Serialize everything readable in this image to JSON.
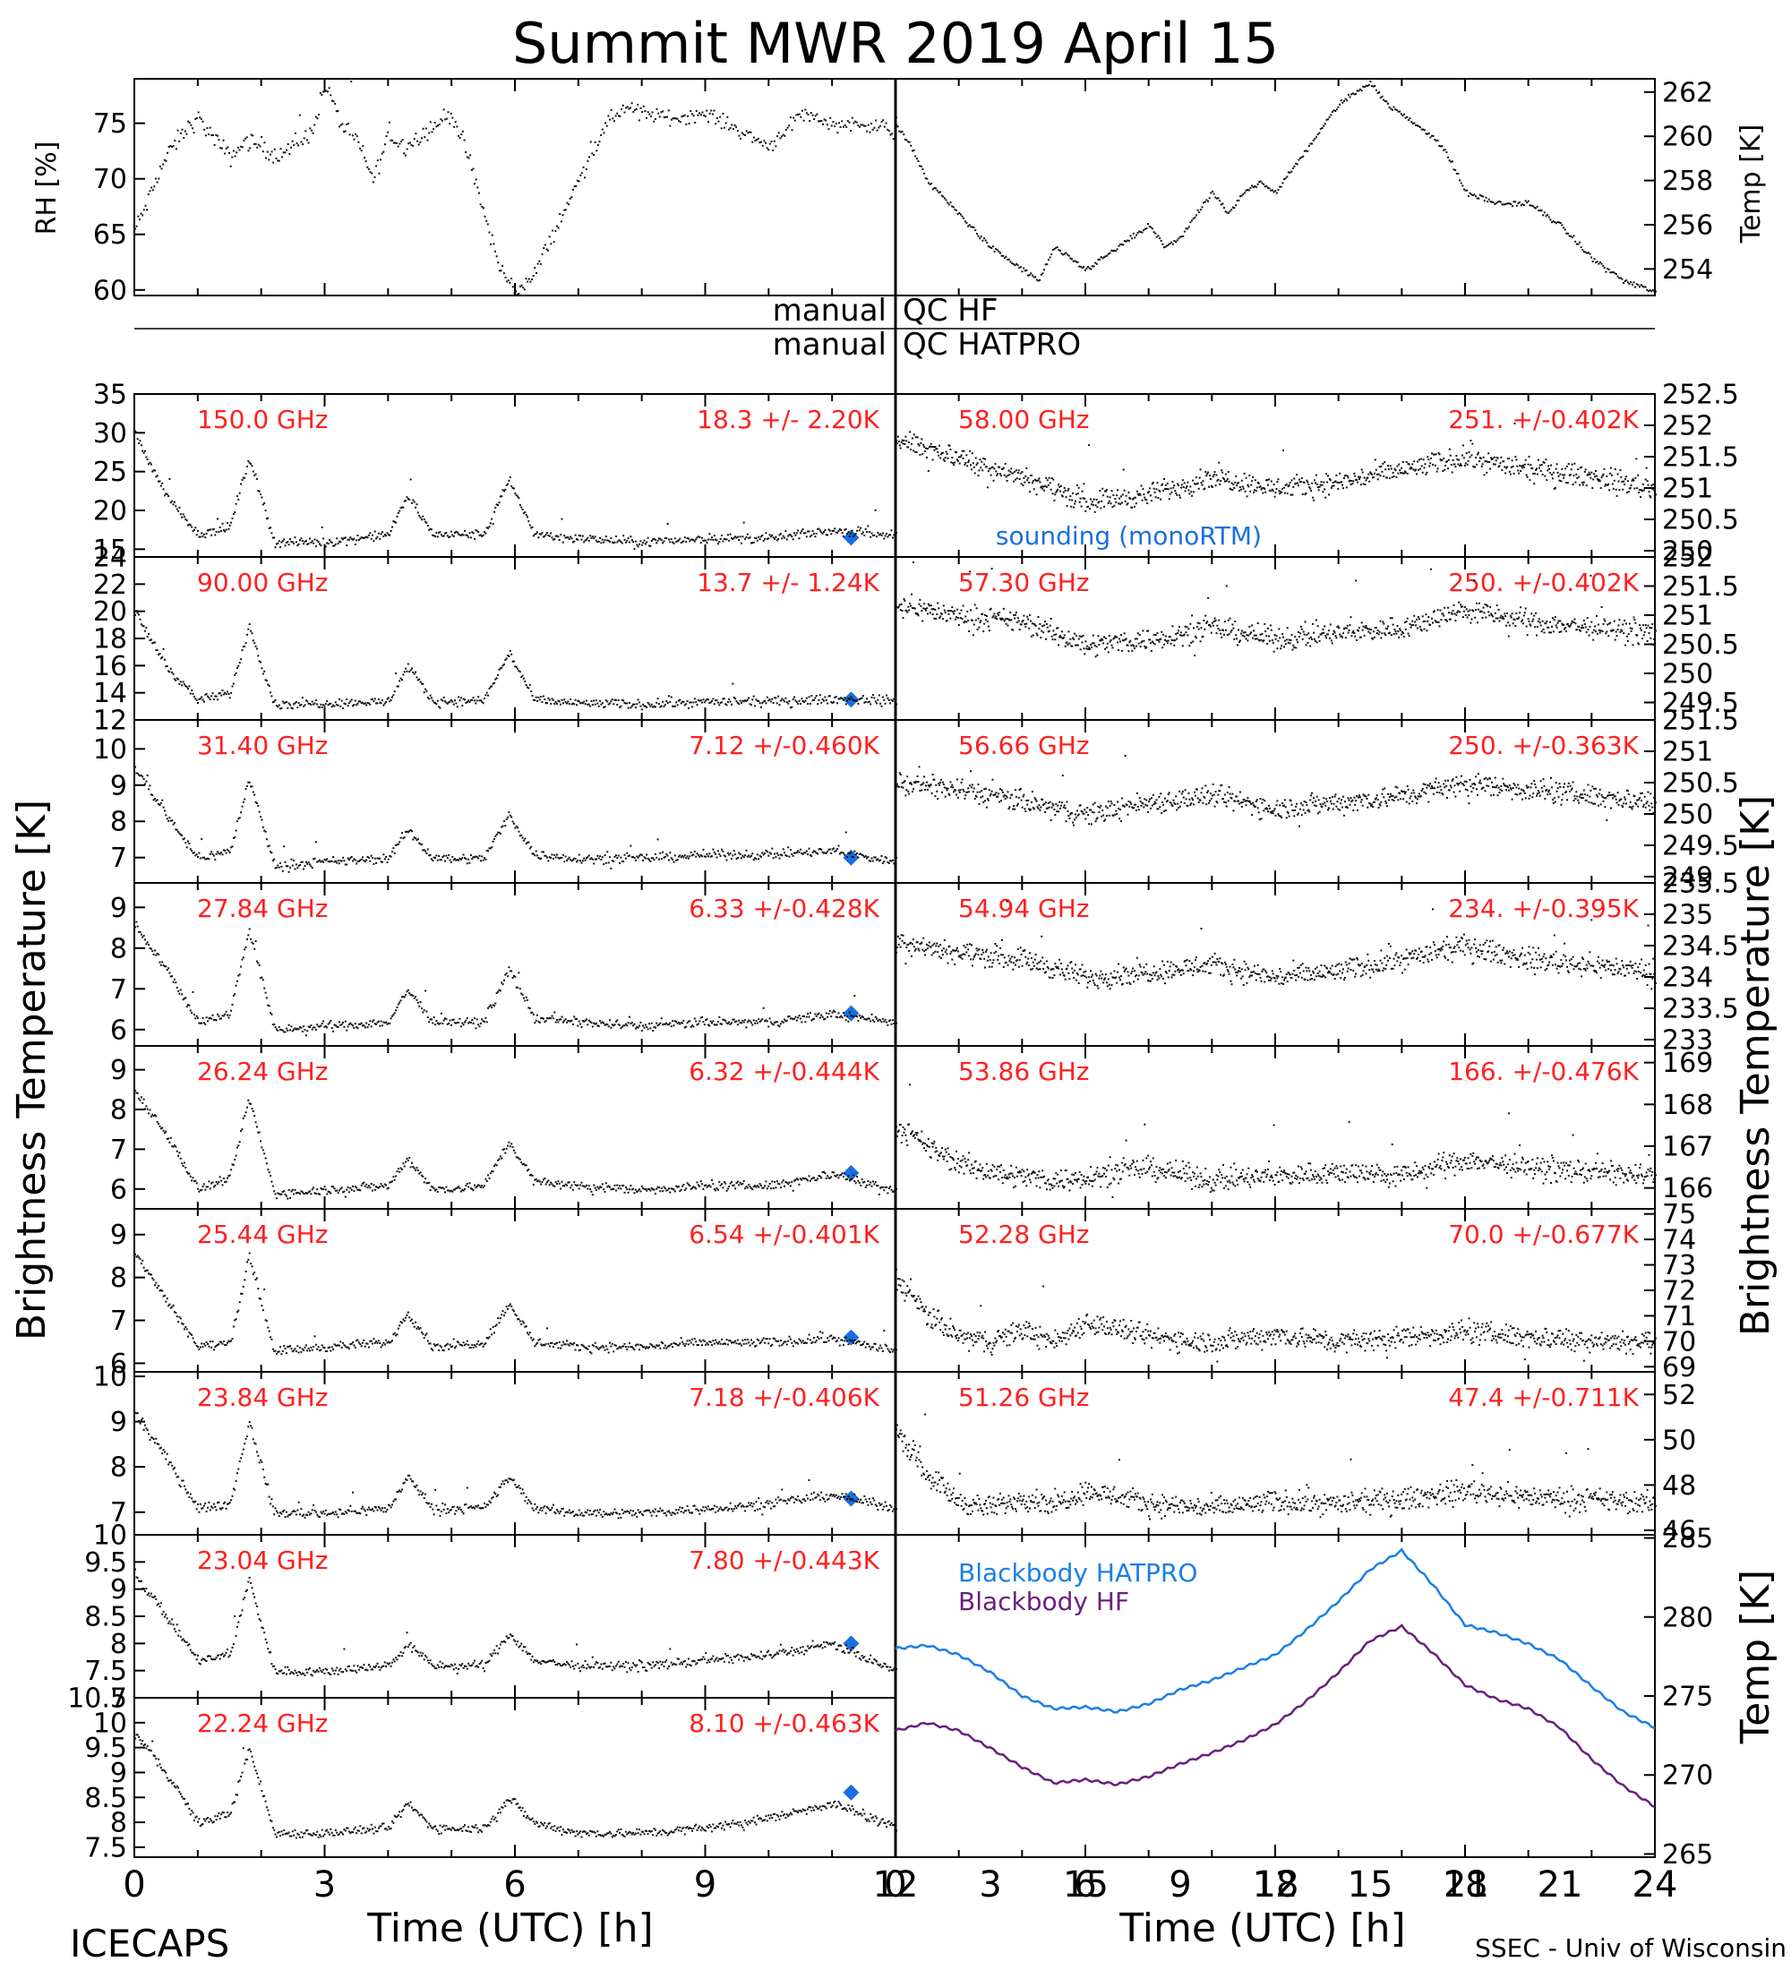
{
  "title": "Summit MWR 2019 April 15",
  "footer_left": "ICECAPS",
  "footer_right": "SSEC - Univ of Wisconsin",
  "colors": {
    "label_red": "#ff2020",
    "sounding_blue": "#1a6fdf",
    "hatpro_blue": "#1a7fe8",
    "hf_purple": "#6a1f7f",
    "axis": "#000000"
  },
  "qc_labels": {
    "hf_left": "manual",
    "hf_right": "QC HF",
    "hatpro_left": "manual",
    "hatpro_right": "QC HATPRO"
  },
  "chart_data": [
    {
      "id": "rh",
      "type": "scatter",
      "ylabel": "RH [%]",
      "xlim": [
        0,
        12
      ],
      "ylim": [
        59.5,
        79
      ],
      "yticks": [
        60,
        65,
        70,
        75
      ],
      "knots_x": [
        0,
        0.4,
        0.8,
        1.2,
        1.6,
        2.0,
        2.4,
        3.0,
        3.5,
        4.0,
        4.5,
        5.0,
        5.5,
        6.0,
        6.5,
        7.0,
        7.5,
        8.0,
        8.5,
        9.0,
        9.5,
        10.0,
        10.5,
        11.0,
        11.5,
        12.0
      ],
      "knots_y": [
        65.5,
        68,
        71,
        73,
        74.5,
        75.5,
        74,
        72,
        73.5,
        73,
        72,
        73,
        74,
        78.5,
        75,
        73.5,
        70,
        74,
        73,
        74,
        75,
        76,
        72,
        67,
        62,
        60
      ]
    },
    {
      "id": "rh_b",
      "type": "scatter",
      "ylabel": "RH [%]",
      "xlim": [
        12,
        24
      ],
      "ylim": [
        59.5,
        79
      ],
      "yticks": [],
      "knots_x": [
        12,
        12.5,
        13.0,
        13.5,
        14.0,
        14.5,
        15.0,
        15.5,
        16.0,
        17.0,
        18.0,
        19.0,
        20.0,
        21.0,
        22.0,
        23.0,
        24.0
      ],
      "knots_y": [
        60,
        61,
        64,
        67,
        70,
        73,
        75.5,
        76.5,
        76,
        75.5,
        76,
        74.5,
        73,
        76,
        75,
        75,
        74.5
      ]
    },
    {
      "id": "temp_air",
      "type": "line",
      "ylabel": "Temp [K]",
      "xlim": [
        0,
        24
      ],
      "ylim": [
        252.8,
        262.6
      ],
      "yticks": [
        254,
        256,
        258,
        260,
        262
      ],
      "knots_x": [
        0,
        0.5,
        1.0,
        2.0,
        3.0,
        4.0,
        4.5,
        5.0,
        5.5,
        6.0,
        6.5,
        7.0,
        7.5,
        8.0,
        8.5,
        9.0,
        9.5,
        10.0,
        10.5,
        11.0,
        11.5,
        12.0,
        12.5,
        13.0,
        13.5,
        14.0,
        14.5,
        15.0,
        15.5,
        16.0,
        16.5,
        17.0,
        17.5,
        18.0,
        19.0,
        20.0,
        21.0,
        22.0,
        23.0,
        24.0
      ],
      "knots_y": [
        260.5,
        259.5,
        258,
        256.5,
        255,
        254,
        253.5,
        255,
        254.5,
        254,
        254.5,
        255,
        255.5,
        256,
        255,
        255.5,
        256.5,
        257.5,
        256.5,
        257.5,
        258,
        257.5,
        258.5,
        259.5,
        260.5,
        261.5,
        262,
        262.5,
        261.5,
        261,
        260.5,
        260,
        259,
        257.5,
        257,
        257,
        256,
        254.5,
        253.5,
        253
      ]
    },
    {
      "id": "ch_150",
      "type": "scatter",
      "label": "150.0 GHz",
      "stat": "18.3 +/-  2.20K",
      "xlim": [
        0,
        12
      ],
      "ylim": [
        14,
        35
      ],
      "yticks": [
        15,
        20,
        25,
        30,
        35
      ],
      "sounding": {
        "x": 11.3,
        "y": 16.5,
        "label": "sounding (monoRTM)"
      },
      "knots_x": [
        0,
        0.5,
        1.0,
        1.5,
        1.8,
        2.2,
        3.0,
        4.0,
        4.3,
        4.7,
        5.5,
        5.9,
        6.3,
        7.0,
        8.0,
        9.0,
        10.0,
        11.0,
        12.0
      ],
      "knots_y": [
        30,
        22,
        17,
        18,
        27,
        16,
        16,
        17,
        22,
        17,
        17,
        24,
        17,
        16.5,
        16,
        16.5,
        16.5,
        17.5,
        17
      ]
    },
    {
      "id": "ch_90",
      "type": "scatter",
      "label": "90.00 GHz",
      "stat": "13.7 +/-  1.24K",
      "xlim": [
        0,
        12
      ],
      "ylim": [
        12,
        24
      ],
      "yticks": [
        12,
        14,
        16,
        18,
        20,
        22,
        24
      ],
      "sounding": {
        "x": 11.3,
        "y": 13.5
      },
      "knots_x": [
        0,
        0.5,
        1.0,
        1.5,
        1.8,
        2.2,
        3.0,
        4.0,
        4.3,
        4.7,
        5.5,
        5.9,
        6.3,
        7.0,
        8.0,
        9.0,
        10.0,
        11.0,
        12.0
      ],
      "knots_y": [
        20,
        16,
        13.5,
        14,
        19,
        13.2,
        13.3,
        13.4,
        16,
        13.4,
        13.5,
        17,
        13.5,
        13.3,
        13.2,
        13.4,
        13.4,
        13.6,
        13.5
      ]
    },
    {
      "id": "ch_58",
      "type": "scatter",
      "label": "58.00 GHz",
      "stat": "251. +/-0.402K",
      "xlim": [
        12,
        24
      ],
      "ylim": [
        249.9,
        252.5
      ],
      "yticks": [
        250.0,
        250.5,
        251.0,
        251.5,
        252.0,
        252.5
      ],
      "knots_x": [
        12,
        13,
        14,
        15,
        16,
        17,
        18,
        19,
        20,
        21,
        22,
        23,
        24
      ],
      "knots_y": [
        251.8,
        251.5,
        251.2,
        250.8,
        250.9,
        251.2,
        251.0,
        251.1,
        251.3,
        251.5,
        251.3,
        251.2,
        251.0
      ]
    },
    {
      "id": "ch_5730",
      "type": "scatter",
      "label": "57.30 GHz",
      "stat": "250. +/-0.402K",
      "xlim": [
        12,
        24
      ],
      "ylim": [
        249.2,
        252.0
      ],
      "yticks": [
        249.5,
        250.0,
        250.5,
        251.0,
        251.5,
        252.0
      ],
      "knots_x": [
        12,
        13,
        14,
        15,
        16,
        17,
        18,
        19,
        20,
        21,
        22,
        23,
        24
      ],
      "knots_y": [
        251.2,
        251.0,
        250.9,
        250.5,
        250.6,
        250.8,
        250.6,
        250.7,
        250.8,
        251.1,
        250.9,
        250.8,
        250.7
      ]
    },
    {
      "id": "ch_3140",
      "type": "scatter",
      "label": "31.40 GHz",
      "stat": "7.12 +/-0.460K",
      "xlim": [
        0,
        12
      ],
      "ylim": [
        6.3,
        10.8
      ],
      "yticks": [
        7,
        8,
        9,
        10
      ],
      "sounding": {
        "x": 11.3,
        "y": 7.0
      },
      "knots_x": [
        0,
        0.5,
        1.0,
        1.5,
        1.8,
        2.2,
        3.0,
        4.0,
        4.3,
        4.7,
        5.5,
        5.9,
        6.3,
        7.0,
        8.0,
        9.0,
        10.0,
        11.0,
        12.0
      ],
      "knots_y": [
        9.5,
        8.2,
        7.0,
        7.2,
        9.2,
        6.8,
        6.9,
        7.0,
        7.8,
        7.0,
        7.0,
        8.2,
        7.1,
        7.0,
        7.0,
        7.1,
        7.1,
        7.2,
        6.9
      ]
    },
    {
      "id": "ch_5666",
      "type": "scatter",
      "label": "56.66 GHz",
      "stat": "250. +/-0.363K",
      "xlim": [
        12,
        24
      ],
      "ylim": [
        248.9,
        251.5
      ],
      "yticks": [
        249.0,
        249.5,
        250.0,
        250.5,
        251.0,
        251.5
      ],
      "knots_x": [
        12,
        13,
        14,
        15,
        16,
        17,
        18,
        19,
        20,
        21,
        22,
        23,
        24
      ],
      "knots_y": [
        250.5,
        250.4,
        250.2,
        250.0,
        250.2,
        250.3,
        250.1,
        250.2,
        250.3,
        250.5,
        250.4,
        250.3,
        250.2
      ]
    },
    {
      "id": "ch_2784",
      "type": "scatter",
      "label": "27.84 GHz",
      "stat": "6.33 +/-0.428K",
      "xlim": [
        0,
        12
      ],
      "ylim": [
        5.6,
        9.6
      ],
      "yticks": [
        6,
        7,
        8,
        9
      ],
      "sounding": {
        "x": 11.3,
        "y": 6.4
      },
      "knots_x": [
        0,
        0.5,
        1.0,
        1.5,
        1.8,
        2.2,
        3.0,
        4.0,
        4.3,
        4.7,
        5.5,
        5.9,
        6.3,
        7.0,
        8.0,
        9.0,
        10.0,
        11.0,
        12.0
      ],
      "knots_y": [
        8.6,
        7.5,
        6.2,
        6.4,
        8.5,
        6.0,
        6.1,
        6.2,
        7.0,
        6.2,
        6.2,
        7.5,
        6.3,
        6.2,
        6.1,
        6.2,
        6.2,
        6.4,
        6.2
      ]
    },
    {
      "id": "ch_5494",
      "type": "scatter",
      "label": "54.94 GHz",
      "stat": "234. +/-0.395K",
      "xlim": [
        12,
        24
      ],
      "ylim": [
        232.9,
        235.5
      ],
      "yticks": [
        233.0,
        233.5,
        234.0,
        234.5,
        235.0,
        235.5
      ],
      "knots_x": [
        12,
        13,
        14,
        15,
        16,
        17,
        18,
        19,
        20,
        21,
        22,
        23,
        24
      ],
      "knots_y": [
        234.6,
        234.4,
        234.3,
        234.0,
        234.1,
        234.2,
        234.0,
        234.1,
        234.3,
        234.5,
        234.3,
        234.2,
        234.1
      ]
    },
    {
      "id": "ch_2624",
      "type": "scatter",
      "label": "26.24 GHz",
      "stat": "6.32 +/-0.444K",
      "xlim": [
        0,
        12
      ],
      "ylim": [
        5.5,
        9.6
      ],
      "yticks": [
        6,
        7,
        8,
        9
      ],
      "sounding": {
        "x": 11.3,
        "y": 6.4
      },
      "knots_x": [
        0,
        0.5,
        1.0,
        1.5,
        1.8,
        2.2,
        3.0,
        4.0,
        4.3,
        4.7,
        5.5,
        5.9,
        6.3,
        7.0,
        8.0,
        9.0,
        10.0,
        11.0,
        12.0
      ],
      "knots_y": [
        8.5,
        7.4,
        6.0,
        6.3,
        8.3,
        5.9,
        6.0,
        6.1,
        6.8,
        6.0,
        6.1,
        7.2,
        6.2,
        6.1,
        6.0,
        6.1,
        6.1,
        6.4,
        6.0
      ]
    },
    {
      "id": "ch_5386",
      "type": "scatter",
      "label": "53.86 GHz",
      "stat": "166. +/-0.476K",
      "xlim": [
        12,
        24
      ],
      "ylim": [
        165.5,
        169.4
      ],
      "yticks": [
        166,
        167,
        168,
        169
      ],
      "knots_x": [
        12,
        12.5,
        13.0,
        13.5,
        14.0,
        14.5,
        15.0,
        16.0,
        17.0,
        18.0,
        19.0,
        20.0,
        21.0,
        22.0,
        23.0,
        24.0
      ],
      "knots_y": [
        167.5,
        167.0,
        166.6,
        166.4,
        166.3,
        166.2,
        166.3,
        166.5,
        166.2,
        166.3,
        166.4,
        166.3,
        166.7,
        166.5,
        166.4,
        166.3
      ]
    },
    {
      "id": "ch_2544",
      "type": "scatter",
      "label": "25.44 GHz",
      "stat": "6.54 +/-0.401K",
      "xlim": [
        0,
        12
      ],
      "ylim": [
        5.8,
        9.6
      ],
      "yticks": [
        6,
        7,
        8,
        9
      ],
      "sounding": {
        "x": 11.3,
        "y": 6.6
      },
      "knots_x": [
        0,
        0.5,
        1.0,
        1.5,
        1.8,
        2.2,
        3.0,
        4.0,
        4.3,
        4.7,
        5.5,
        5.9,
        6.3,
        7.0,
        8.0,
        9.0,
        10.0,
        11.0,
        12.0
      ],
      "knots_y": [
        8.6,
        7.5,
        6.4,
        6.5,
        8.5,
        6.3,
        6.4,
        6.5,
        7.2,
        6.4,
        6.5,
        7.4,
        6.5,
        6.4,
        6.4,
        6.5,
        6.5,
        6.6,
        6.3
      ]
    },
    {
      "id": "ch_5228",
      "type": "scatter",
      "label": "52.28 GHz",
      "stat": "70.0 +/-0.677K",
      "xlim": [
        12,
        24
      ],
      "ylim": [
        68.8,
        75.2
      ],
      "yticks": [
        69,
        70,
        71,
        72,
        73,
        74,
        75
      ],
      "knots_x": [
        12,
        12.5,
        13.0,
        13.5,
        14.0,
        14.5,
        15.0,
        16.0,
        17.0,
        18.0,
        19.0,
        20.0,
        21.0,
        22.0,
        23.0,
        24.0
      ],
      "knots_y": [
        72.5,
        71.0,
        70.2,
        70.0,
        70.5,
        70.0,
        70.8,
        70.2,
        70.0,
        70.3,
        70.0,
        70.2,
        70.4,
        70.2,
        70.1,
        70.0
      ]
    },
    {
      "id": "ch_2384",
      "type": "scatter",
      "label": "23.84 GHz",
      "stat": "7.18 +/-0.406K",
      "xlim": [
        0,
        12
      ],
      "ylim": [
        6.5,
        10.1
      ],
      "yticks": [
        7,
        8,
        9,
        10
      ],
      "sounding": {
        "x": 11.3,
        "y": 7.3
      },
      "knots_x": [
        0,
        0.5,
        1.0,
        1.5,
        1.8,
        2.2,
        3.0,
        4.0,
        4.3,
        4.7,
        5.5,
        5.9,
        6.3,
        7.0,
        8.0,
        9.0,
        10.0,
        11.0,
        12.0
      ],
      "knots_y": [
        9.2,
        8.2,
        7.1,
        7.2,
        9.0,
        7.0,
        7.0,
        7.1,
        7.8,
        7.1,
        7.1,
        7.8,
        7.1,
        7.0,
        7.0,
        7.1,
        7.2,
        7.4,
        7.1
      ]
    },
    {
      "id": "ch_5126",
      "type": "scatter",
      "label": "51.26 GHz",
      "stat": "47.4 +/-0.711K",
      "xlim": [
        12,
        24
      ],
      "ylim": [
        45.8,
        53.0
      ],
      "yticks": [
        46,
        48,
        50,
        52
      ],
      "knots_x": [
        12,
        12.5,
        13.0,
        13.5,
        14.0,
        14.5,
        15.0,
        16.0,
        17.0,
        18.0,
        19.0,
        20.0,
        21.0,
        22.0,
        23.0,
        24.0
      ],
      "knots_y": [
        50.5,
        48.5,
        47.3,
        47.0,
        47.5,
        47.2,
        47.8,
        47.2,
        47.0,
        47.3,
        47.2,
        47.4,
        47.8,
        47.5,
        47.4,
        47.2
      ]
    },
    {
      "id": "ch_2304",
      "type": "scatter",
      "label": "23.04 GHz",
      "stat": "7.80 +/-0.443K",
      "xlim": [
        0,
        12
      ],
      "ylim": [
        7.0,
        10.0
      ],
      "yticks": [
        7.0,
        7.5,
        8.0,
        8.5,
        9.0,
        9.5,
        10.0
      ],
      "sounding": {
        "x": 11.3,
        "y": 8.0
      },
      "knots_x": [
        0,
        0.5,
        1.0,
        1.5,
        1.8,
        2.2,
        3.0,
        4.0,
        4.3,
        4.7,
        5.5,
        5.9,
        6.3,
        7.0,
        8.0,
        9.0,
        10.0,
        11.0,
        12.0
      ],
      "knots_y": [
        9.3,
        8.5,
        7.7,
        7.8,
        9.2,
        7.5,
        7.5,
        7.6,
        8.0,
        7.6,
        7.6,
        8.2,
        7.7,
        7.6,
        7.6,
        7.7,
        7.8,
        8.0,
        7.5
      ]
    },
    {
      "id": "ch_2224",
      "type": "scatter",
      "label": "22.24 GHz",
      "stat": "8.10 +/-0.463K",
      "xlim": [
        0,
        12
      ],
      "ylim": [
        7.3,
        10.5
      ],
      "yticks": [
        7.5,
        8.0,
        8.5,
        9.0,
        9.5,
        10.0,
        10.5
      ],
      "sounding": {
        "x": 11.3,
        "y": 8.6
      },
      "knots_x": [
        0,
        0.5,
        1.0,
        1.5,
        1.8,
        2.2,
        3.0,
        4.0,
        4.3,
        4.7,
        5.5,
        5.9,
        6.3,
        7.0,
        8.0,
        9.0,
        10.0,
        11.0,
        12.0
      ],
      "knots_y": [
        9.8,
        9.0,
        8.0,
        8.2,
        9.5,
        7.8,
        7.8,
        7.9,
        8.4,
        7.9,
        7.9,
        8.5,
        8.0,
        7.8,
        7.8,
        7.9,
        8.1,
        8.4,
        7.9
      ]
    },
    {
      "id": "blackbody",
      "type": "line",
      "ylabel": "Temp [K]",
      "xlim": [
        0,
        24
      ],
      "ylim": [
        264.8,
        285.2
      ],
      "yticks": [
        265,
        270,
        275,
        280,
        285
      ],
      "x": [
        0,
        1,
        2,
        3,
        4,
        5,
        6,
        7,
        8,
        9,
        10,
        11,
        12,
        13,
        14,
        15,
        16,
        17,
        18,
        19,
        20,
        21,
        22,
        23,
        24
      ],
      "series": [
        {
          "name": "Blackbody HATPRO",
          "color": "#1a7fe8",
          "values": [
            278.0,
            278.2,
            277.6,
            276.5,
            275.0,
            274.2,
            274.3,
            274.0,
            274.5,
            275.4,
            276.0,
            276.8,
            277.6,
            279.2,
            281.0,
            283.0,
            284.2,
            282.0,
            279.5,
            279.0,
            278.3,
            277.3,
            275.6,
            274.0,
            273.0
          ]
        },
        {
          "name": "Blackbody HF",
          "color": "#6a1f7f",
          "values": [
            272.8,
            273.3,
            272.8,
            271.7,
            270.5,
            269.5,
            269.7,
            269.4,
            269.9,
            270.7,
            271.4,
            272.2,
            273.2,
            274.7,
            276.5,
            278.5,
            279.4,
            277.7,
            275.7,
            274.8,
            274.2,
            273.0,
            271.0,
            269.3,
            268.0
          ]
        }
      ]
    }
  ],
  "left_ylabel": "Brightness Temperature [K]",
  "right_ylabel": "Brightness Temperature [K]",
  "bb_ylabel": "Temp [K]",
  "xlabel": "Time (UTC) [h]",
  "left_xticks": [
    0,
    3,
    6,
    9,
    12,
    15,
    18,
    21
  ],
  "right_xticks": [
    0,
    3,
    6,
    9,
    12,
    15,
    18,
    21,
    24
  ]
}
